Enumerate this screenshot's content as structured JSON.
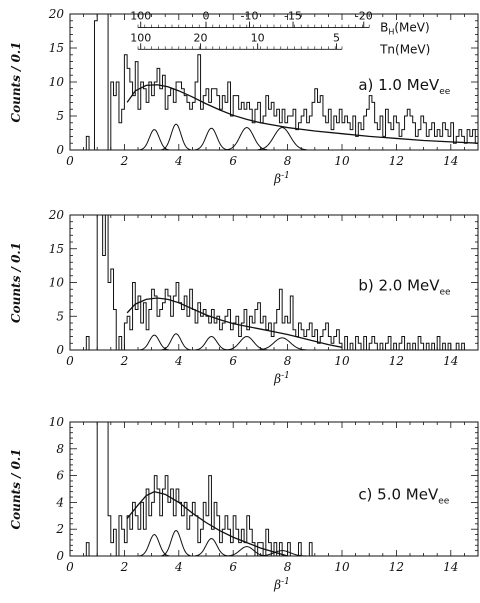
{
  "chart_data": [
    {
      "type": "histogram",
      "panel": "a",
      "label": "a) 1.0 MeV",
      "label_sub": "ee",
      "xlabel": "β",
      "xlabel_sup": "-1",
      "ylabel": "Counts / 0.1",
      "xlim": [
        0,
        15
      ],
      "ylim": [
        0,
        20
      ],
      "xticks": [
        0,
        2,
        4,
        6,
        8,
        10,
        12,
        14
      ],
      "yticks": [
        0,
        5,
        10,
        15,
        20
      ],
      "bin_width": 0.1,
      "histogram": {
        "x_start": 0.5,
        "values": [
          0,
          2,
          0,
          0,
          19,
          20,
          20,
          20,
          20,
          0,
          10,
          8,
          10,
          4,
          6,
          14,
          12,
          10,
          8,
          13,
          6,
          10,
          9,
          7,
          10,
          8,
          10,
          12,
          9,
          11,
          6,
          8,
          9,
          7,
          10,
          10,
          9,
          8,
          7,
          6,
          7,
          10,
          14,
          6,
          8,
          9,
          7,
          9,
          9,
          8,
          6,
          8,
          7,
          10,
          5,
          8,
          8,
          6,
          7,
          6,
          7,
          6,
          4,
          6,
          7,
          4,
          5,
          8,
          6,
          7,
          5,
          6,
          4,
          6,
          4,
          5,
          5,
          6,
          3,
          4,
          5,
          6,
          4,
          5,
          7,
          9,
          7,
          8,
          5,
          4,
          6,
          3,
          5,
          4,
          6,
          4,
          5,
          4,
          3,
          5,
          2,
          4,
          3,
          5,
          6,
          8,
          7,
          4,
          3,
          5,
          2,
          6,
          4,
          3,
          5,
          4,
          2,
          3,
          5,
          6,
          5,
          4,
          2,
          3,
          5,
          4,
          2,
          3,
          4,
          2,
          3,
          2,
          4,
          3,
          2,
          4,
          1,
          2,
          3,
          2,
          1,
          3,
          2,
          3,
          1,
          2,
          1,
          3,
          2,
          1
        ]
      },
      "fit_curve": {
        "x": [
          2.1,
          2.4,
          2.8,
          3.2,
          3.6,
          4.0,
          4.5,
          5.0,
          5.5,
          6.0,
          6.5,
          7.0,
          8.0,
          9.0,
          10.0,
          11.0,
          12.0,
          13.0,
          14.0,
          15.0
        ],
        "y": [
          7.0,
          8.7,
          9.5,
          9.6,
          9.3,
          8.7,
          7.8,
          6.8,
          5.9,
          5.1,
          4.5,
          4.0,
          3.3,
          2.8,
          2.4,
          2.0,
          1.7,
          1.4,
          1.2,
          1.0
        ]
      },
      "peaks": [
        {
          "center": 3.1,
          "height": 3.0,
          "width": 0.18
        },
        {
          "center": 3.9,
          "height": 3.8,
          "width": 0.18
        },
        {
          "center": 5.2,
          "height": 3.2,
          "width": 0.2
        },
        {
          "center": 6.5,
          "height": 3.3,
          "width": 0.25
        },
        {
          "center": 7.8,
          "height": 3.3,
          "width": 0.3
        }
      ],
      "scales": [
        {
          "name": "B",
          "name_sub": "H",
          "unit": "(MeV)",
          "ticks": [
            {
              "x": 2.6,
              "label": "100"
            },
            {
              "x": 5.0,
              "label": "0"
            },
            {
              "x": 6.6,
              "label": "-10"
            },
            {
              "x": 8.2,
              "label": "-15"
            },
            {
              "x": 10.8,
              "label": "-20"
            }
          ],
          "x_range": [
            2.5,
            11.0
          ],
          "y": 18.0
        },
        {
          "name": "Tn",
          "name_sub": "",
          "unit": "(MeV)",
          "ticks": [
            {
              "x": 2.6,
              "label": "100"
            },
            {
              "x": 4.8,
              "label": "20"
            },
            {
              "x": 6.9,
              "label": "10"
            },
            {
              "x": 9.8,
              "label": "5"
            }
          ],
          "x_range": [
            2.5,
            10.0
          ],
          "y": 14.8
        }
      ]
    },
    {
      "type": "histogram",
      "panel": "b",
      "label": "b) 2.0 MeV",
      "label_sub": "ee",
      "xlabel": "β",
      "xlabel_sup": "-1",
      "ylabel": "Counts / 0.1",
      "xlim": [
        0,
        15
      ],
      "ylim": [
        0,
        20
      ],
      "xticks": [
        0,
        2,
        4,
        6,
        8,
        10,
        12,
        14
      ],
      "yticks": [
        0,
        5,
        10,
        15,
        20
      ],
      "bin_width": 0.1,
      "histogram": {
        "x_start": 0.6,
        "values": [
          2,
          0,
          0,
          0,
          20,
          20,
          14,
          20,
          10,
          12,
          6,
          0,
          2,
          0,
          4,
          5,
          3,
          10,
          6,
          8,
          4,
          7,
          3,
          6,
          9,
          8,
          5,
          6,
          7,
          9,
          8,
          5,
          8,
          10,
          7,
          6,
          8,
          5,
          9,
          6,
          4,
          7,
          5,
          6,
          5,
          4,
          6,
          4,
          5,
          3,
          4,
          5,
          6,
          3,
          4,
          5,
          2,
          4,
          6,
          3,
          5,
          4,
          6,
          7,
          4,
          5,
          3,
          4,
          2,
          4,
          6,
          9,
          4,
          5,
          4,
          8,
          3,
          2,
          4,
          3,
          2,
          3,
          4,
          2,
          3,
          1,
          2,
          3,
          4,
          2,
          1,
          2,
          3,
          1,
          0,
          2,
          0,
          1,
          0,
          2,
          1,
          0,
          2,
          0,
          1,
          2,
          1,
          0,
          1,
          0,
          1,
          2,
          0,
          1,
          0,
          1,
          2,
          0,
          1,
          0,
          1,
          0,
          2,
          1,
          0,
          1,
          0,
          1,
          0,
          2,
          0,
          1,
          0,
          1,
          0,
          0,
          1,
          0,
          1,
          0
        ]
      },
      "fit_curve": {
        "x": [
          2.1,
          2.4,
          2.8,
          3.2,
          3.6,
          4.0,
          4.5,
          5.0,
          5.5,
          6.0,
          6.5,
          7.0,
          7.5,
          8.0,
          8.5,
          9.0,
          9.5,
          10.0
        ],
        "y": [
          5.5,
          6.8,
          7.5,
          7.7,
          7.5,
          7.0,
          6.1,
          5.2,
          4.5,
          3.9,
          3.5,
          3.1,
          2.7,
          2.3,
          1.8,
          1.3,
          0.8,
          0.4
        ]
      },
      "peaks": [
        {
          "center": 3.1,
          "height": 2.2,
          "width": 0.18
        },
        {
          "center": 3.9,
          "height": 2.4,
          "width": 0.18
        },
        {
          "center": 5.2,
          "height": 2.0,
          "width": 0.2
        },
        {
          "center": 6.5,
          "height": 2.0,
          "width": 0.25
        },
        {
          "center": 7.8,
          "height": 1.8,
          "width": 0.3
        }
      ]
    },
    {
      "type": "histogram",
      "panel": "c",
      "label": "c) 5.0 MeV",
      "label_sub": "ee",
      "xlabel": "β",
      "xlabel_sup": "-1",
      "ylabel": "Counts / 0.1",
      "xlim": [
        0,
        15
      ],
      "ylim": [
        0,
        10
      ],
      "xticks": [
        0,
        2,
        4,
        6,
        8,
        10,
        12,
        14
      ],
      "yticks": [
        0,
        2,
        4,
        6,
        8,
        10
      ],
      "bin_width": 0.1,
      "histogram": {
        "x_start": 0.6,
        "values": [
          1,
          0,
          0,
          0,
          10,
          10,
          10,
          10,
          3,
          1,
          2,
          0,
          3,
          2,
          1,
          3,
          2,
          4,
          3,
          2,
          4,
          2,
          5,
          3,
          4,
          6,
          5,
          3,
          5,
          6,
          4,
          5,
          3,
          5,
          4,
          3,
          4,
          2,
          3,
          4,
          3,
          1,
          2,
          4,
          3,
          6,
          2,
          4,
          3,
          1,
          2,
          3,
          2,
          1,
          3,
          2,
          1,
          2,
          1,
          3,
          2,
          1,
          0,
          1,
          1,
          0,
          2,
          1,
          0,
          1,
          0,
          1,
          0,
          0,
          1,
          0,
          0,
          0,
          1,
          0,
          0,
          0,
          1,
          0,
          0,
          0,
          0,
          0,
          0,
          0
        ]
      },
      "fit_curve": {
        "x": [
          2.1,
          2.5,
          2.8,
          3.1,
          3.5,
          4.0,
          4.5,
          5.0,
          5.5,
          6.0,
          6.5,
          7.0,
          7.5,
          8.0
        ],
        "y": [
          2.8,
          3.8,
          4.5,
          4.8,
          4.6,
          4.0,
          3.2,
          2.5,
          1.9,
          1.4,
          1.0,
          0.6,
          0.3,
          0.0
        ]
      },
      "peaks": [
        {
          "center": 3.1,
          "height": 1.6,
          "width": 0.18
        },
        {
          "center": 3.9,
          "height": 1.9,
          "width": 0.18
        },
        {
          "center": 5.2,
          "height": 1.3,
          "width": 0.2
        },
        {
          "center": 6.5,
          "height": 0.7,
          "width": 0.25
        },
        {
          "center": 7.8,
          "height": 0.4,
          "width": 0.3
        }
      ]
    }
  ]
}
